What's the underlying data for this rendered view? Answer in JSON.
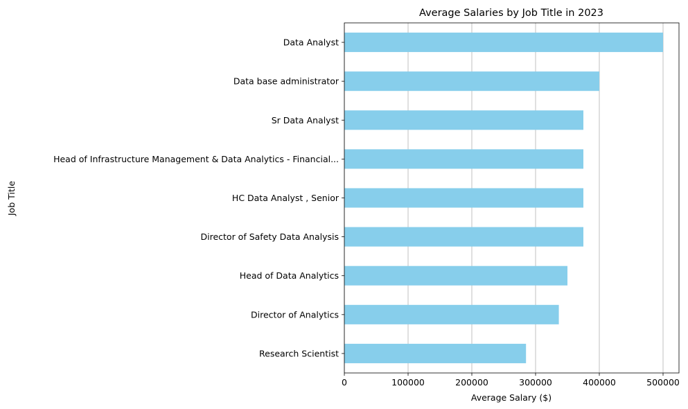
{
  "chart_data": {
    "type": "bar",
    "orientation": "horizontal",
    "title": "Average Salaries by Job Title in 2023",
    "xlabel": "Average Salary ($)",
    "ylabel": "Job Title",
    "categories": [
      "Data Analyst",
      "Data base administrator",
      "Sr Data Analyst",
      "Head of Infrastructure Management & Data Analytics - Financial...",
      "HC Data Analyst , Senior",
      "Director of Safety Data Analysis",
      "Head of Data Analytics",
      "Director of Analytics",
      "Research Scientist"
    ],
    "values": [
      500000,
      400000,
      375000,
      375000,
      375000,
      375000,
      350000,
      336500,
      285000
    ],
    "xlim": [
      0,
      525000
    ],
    "xticks": [
      0,
      100000,
      200000,
      300000,
      400000,
      500000
    ],
    "xtick_labels": [
      "0",
      "100000",
      "200000",
      "300000",
      "400000",
      "500000"
    ],
    "grid": "x-axis vertical lines",
    "bar_color": "#87ceeb",
    "grid_color": "#b0b0b0"
  }
}
